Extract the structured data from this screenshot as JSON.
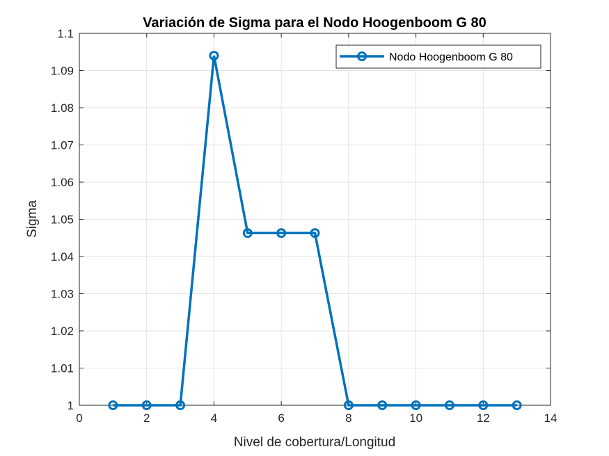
{
  "chart_data": {
    "type": "line",
    "title": "Variación de Sigma para el Nodo Hoogenboom G 80",
    "xlabel": "Nivel de cobertura/Longitud",
    "ylabel": "Sigma",
    "xlim": [
      0,
      14
    ],
    "ylim": [
      1,
      1.1
    ],
    "xticks": [
      0,
      2,
      4,
      6,
      8,
      10,
      12,
      14
    ],
    "xtick_labels": [
      "0",
      "2",
      "4",
      "6",
      "8",
      "10",
      "12",
      "14"
    ],
    "yticks": [
      1,
      1.01,
      1.02,
      1.03,
      1.04,
      1.05,
      1.06,
      1.07,
      1.08,
      1.09,
      1.1
    ],
    "ytick_labels": [
      "1",
      "1.01",
      "1.02",
      "1.03",
      "1.04",
      "1.05",
      "1.06",
      "1.07",
      "1.08",
      "1.09",
      "1.1"
    ],
    "grid": true,
    "legend_position": "top-right",
    "series": [
      {
        "name": "Nodo Hoogenboom G 80",
        "color": "#0072BD",
        "marker": "circle",
        "x": [
          1,
          2,
          3,
          4,
          5,
          6,
          7,
          8,
          9,
          10,
          11,
          12,
          13
        ],
        "y": [
          1,
          1,
          1,
          1.094,
          1.0463,
          1.0463,
          1.0463,
          1,
          1,
          1,
          1,
          1,
          1
        ]
      }
    ]
  }
}
